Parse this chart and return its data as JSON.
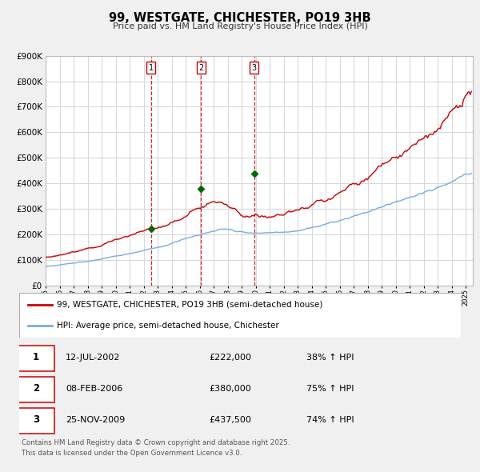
{
  "title": "99, WESTGATE, CHICHESTER, PO19 3HB",
  "subtitle": "Price paid vs. HM Land Registry's House Price Index (HPI)",
  "ylim": [
    0,
    900000
  ],
  "yticks": [
    0,
    100000,
    200000,
    300000,
    400000,
    500000,
    600000,
    700000,
    800000,
    900000
  ],
  "ytick_labels": [
    "£0",
    "£100K",
    "£200K",
    "£300K",
    "£400K",
    "£500K",
    "£600K",
    "£700K",
    "£800K",
    "£900K"
  ],
  "bg_color": "#f0f0f0",
  "plot_bg_color": "#ffffff",
  "grid_color": "#d8d8d8",
  "red_line_color": "#cc0000",
  "blue_line_color": "#7aabdc",
  "sale_marker_color": "#006600",
  "transaction_line_color": "#cc0000",
  "legend_label_red": "99, WESTGATE, CHICHESTER, PO19 3HB (semi-detached house)",
  "legend_label_blue": "HPI: Average price, semi-detached house, Chichester",
  "transactions": [
    {
      "num": 1,
      "date": "12-JUL-2002",
      "price": "£222,000",
      "hpi": "38% ↑ HPI",
      "year": 2002.53,
      "price_val": 222000
    },
    {
      "num": 2,
      "date": "08-FEB-2006",
      "price": "£380,000",
      "hpi": "75% ↑ HPI",
      "year": 2006.1,
      "price_val": 380000
    },
    {
      "num": 3,
      "date": "25-NOV-2009",
      "price": "£437,500",
      "hpi": "74% ↑ HPI",
      "year": 2009.9,
      "price_val": 437500
    }
  ],
  "footer_line1": "Contains HM Land Registry data © Crown copyright and database right 2025.",
  "footer_line2": "This data is licensed under the Open Government Licence v3.0.",
  "xmin": 1995.0,
  "xmax": 2025.5
}
